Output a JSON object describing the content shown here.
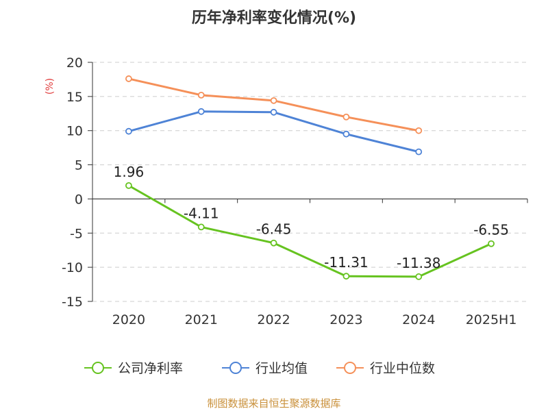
{
  "chart_data": {
    "type": "line",
    "title": "历年净利率变化情况(%)",
    "ylabel": "(%)",
    "xlabel": "",
    "categories": [
      "2020",
      "2021",
      "2022",
      "2023",
      "2024",
      "2025H1"
    ],
    "ylim": [
      -15,
      20
    ],
    "yticks": [
      20,
      15,
      10,
      5,
      0,
      -5,
      -10,
      -15
    ],
    "grid": true,
    "series": [
      {
        "name": "公司净利率",
        "color": "#66c320",
        "values": [
          1.96,
          -4.11,
          -6.45,
          -11.31,
          -11.38,
          -6.55
        ],
        "labels": [
          "1.96",
          "-4.11",
          "-6.45",
          "-11.31",
          "-11.38",
          "-6.55"
        ]
      },
      {
        "name": "行业均值",
        "color": "#4e83d6",
        "values": [
          9.9,
          12.8,
          12.7,
          9.5,
          6.9,
          null
        ]
      },
      {
        "name": "行业中位数",
        "color": "#f59059",
        "values": [
          17.6,
          15.2,
          14.4,
          12.0,
          10.0,
          null
        ]
      }
    ],
    "unit_color": "#e03b3b"
  },
  "source": {
    "text": "制图数据来自恒生聚源数据库",
    "color": "#c9903a"
  }
}
